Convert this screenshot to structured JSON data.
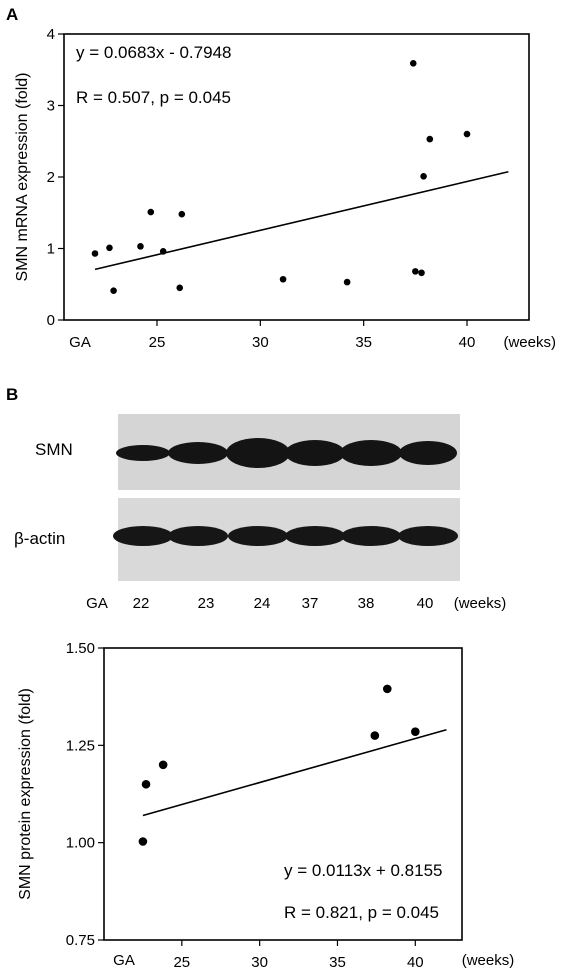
{
  "panels": {
    "a_letter": "A",
    "b_letter": "B"
  },
  "chart_data": [
    {
      "type": "scatter",
      "title": "",
      "ylabel": "SMN mRNA expression (fold)",
      "xlabel": "",
      "x_prefix": "GA",
      "x_unit": "(weeks)",
      "xlim": [
        20.5,
        43
      ],
      "ylim": [
        0,
        4
      ],
      "xticks": [
        "25",
        "30",
        "35",
        "40"
      ],
      "yticks": [
        "0",
        "1",
        "2",
        "3",
        "4"
      ],
      "equation": "y = 0.0683x - 0.7948",
      "stats": "R = 0.507, p = 0.045",
      "fit": {
        "slope": 0.0683,
        "intercept": -0.7948,
        "x_range": [
          22,
          42
        ]
      },
      "points": [
        {
          "x": 22.0,
          "y": 0.93
        },
        {
          "x": 22.7,
          "y": 1.01
        },
        {
          "x": 22.9,
          "y": 0.41
        },
        {
          "x": 24.2,
          "y": 1.03
        },
        {
          "x": 24.7,
          "y": 1.51
        },
        {
          "x": 25.3,
          "y": 0.96
        },
        {
          "x": 26.1,
          "y": 0.45
        },
        {
          "x": 26.2,
          "y": 1.48
        },
        {
          "x": 31.1,
          "y": 0.57
        },
        {
          "x": 34.2,
          "y": 0.53
        },
        {
          "x": 37.4,
          "y": 3.59
        },
        {
          "x": 37.5,
          "y": 0.68
        },
        {
          "x": 37.8,
          "y": 0.66
        },
        {
          "x": 37.9,
          "y": 2.01
        },
        {
          "x": 38.2,
          "y": 2.53
        },
        {
          "x": 40.0,
          "y": 2.6
        }
      ]
    },
    {
      "type": "scatter",
      "title": "",
      "ylabel": "SMN protein expression (fold)",
      "xlabel": "",
      "x_prefix": "GA",
      "x_unit": "(weeks)",
      "xlim": [
        20,
        43
      ],
      "ylim": [
        0.75,
        1.5
      ],
      "xticks": [
        "25",
        "30",
        "35",
        "40"
      ],
      "yticks": [
        "0.75",
        "1.00",
        "1.25",
        "1.50"
      ],
      "equation": "y = 0.0113x + 0.8155",
      "stats": "R = 0.821, p = 0.045",
      "fit": {
        "slope": 0.0113,
        "intercept": 0.8155,
        "x_range": [
          22.5,
          42
        ]
      },
      "points": [
        {
          "x": 22.5,
          "y": 1.003
        },
        {
          "x": 22.7,
          "y": 1.15
        },
        {
          "x": 23.8,
          "y": 1.2
        },
        {
          "x": 37.4,
          "y": 1.275
        },
        {
          "x": 38.2,
          "y": 1.395
        },
        {
          "x": 40.0,
          "y": 1.285
        }
      ]
    }
  ],
  "blot": {
    "rows": [
      "SMN",
      "β-actin"
    ],
    "lane_prefix": "GA",
    "lanes": [
      "22",
      "23",
      "24",
      "37",
      "38",
      "40"
    ],
    "lane_unit": "(weeks)"
  }
}
